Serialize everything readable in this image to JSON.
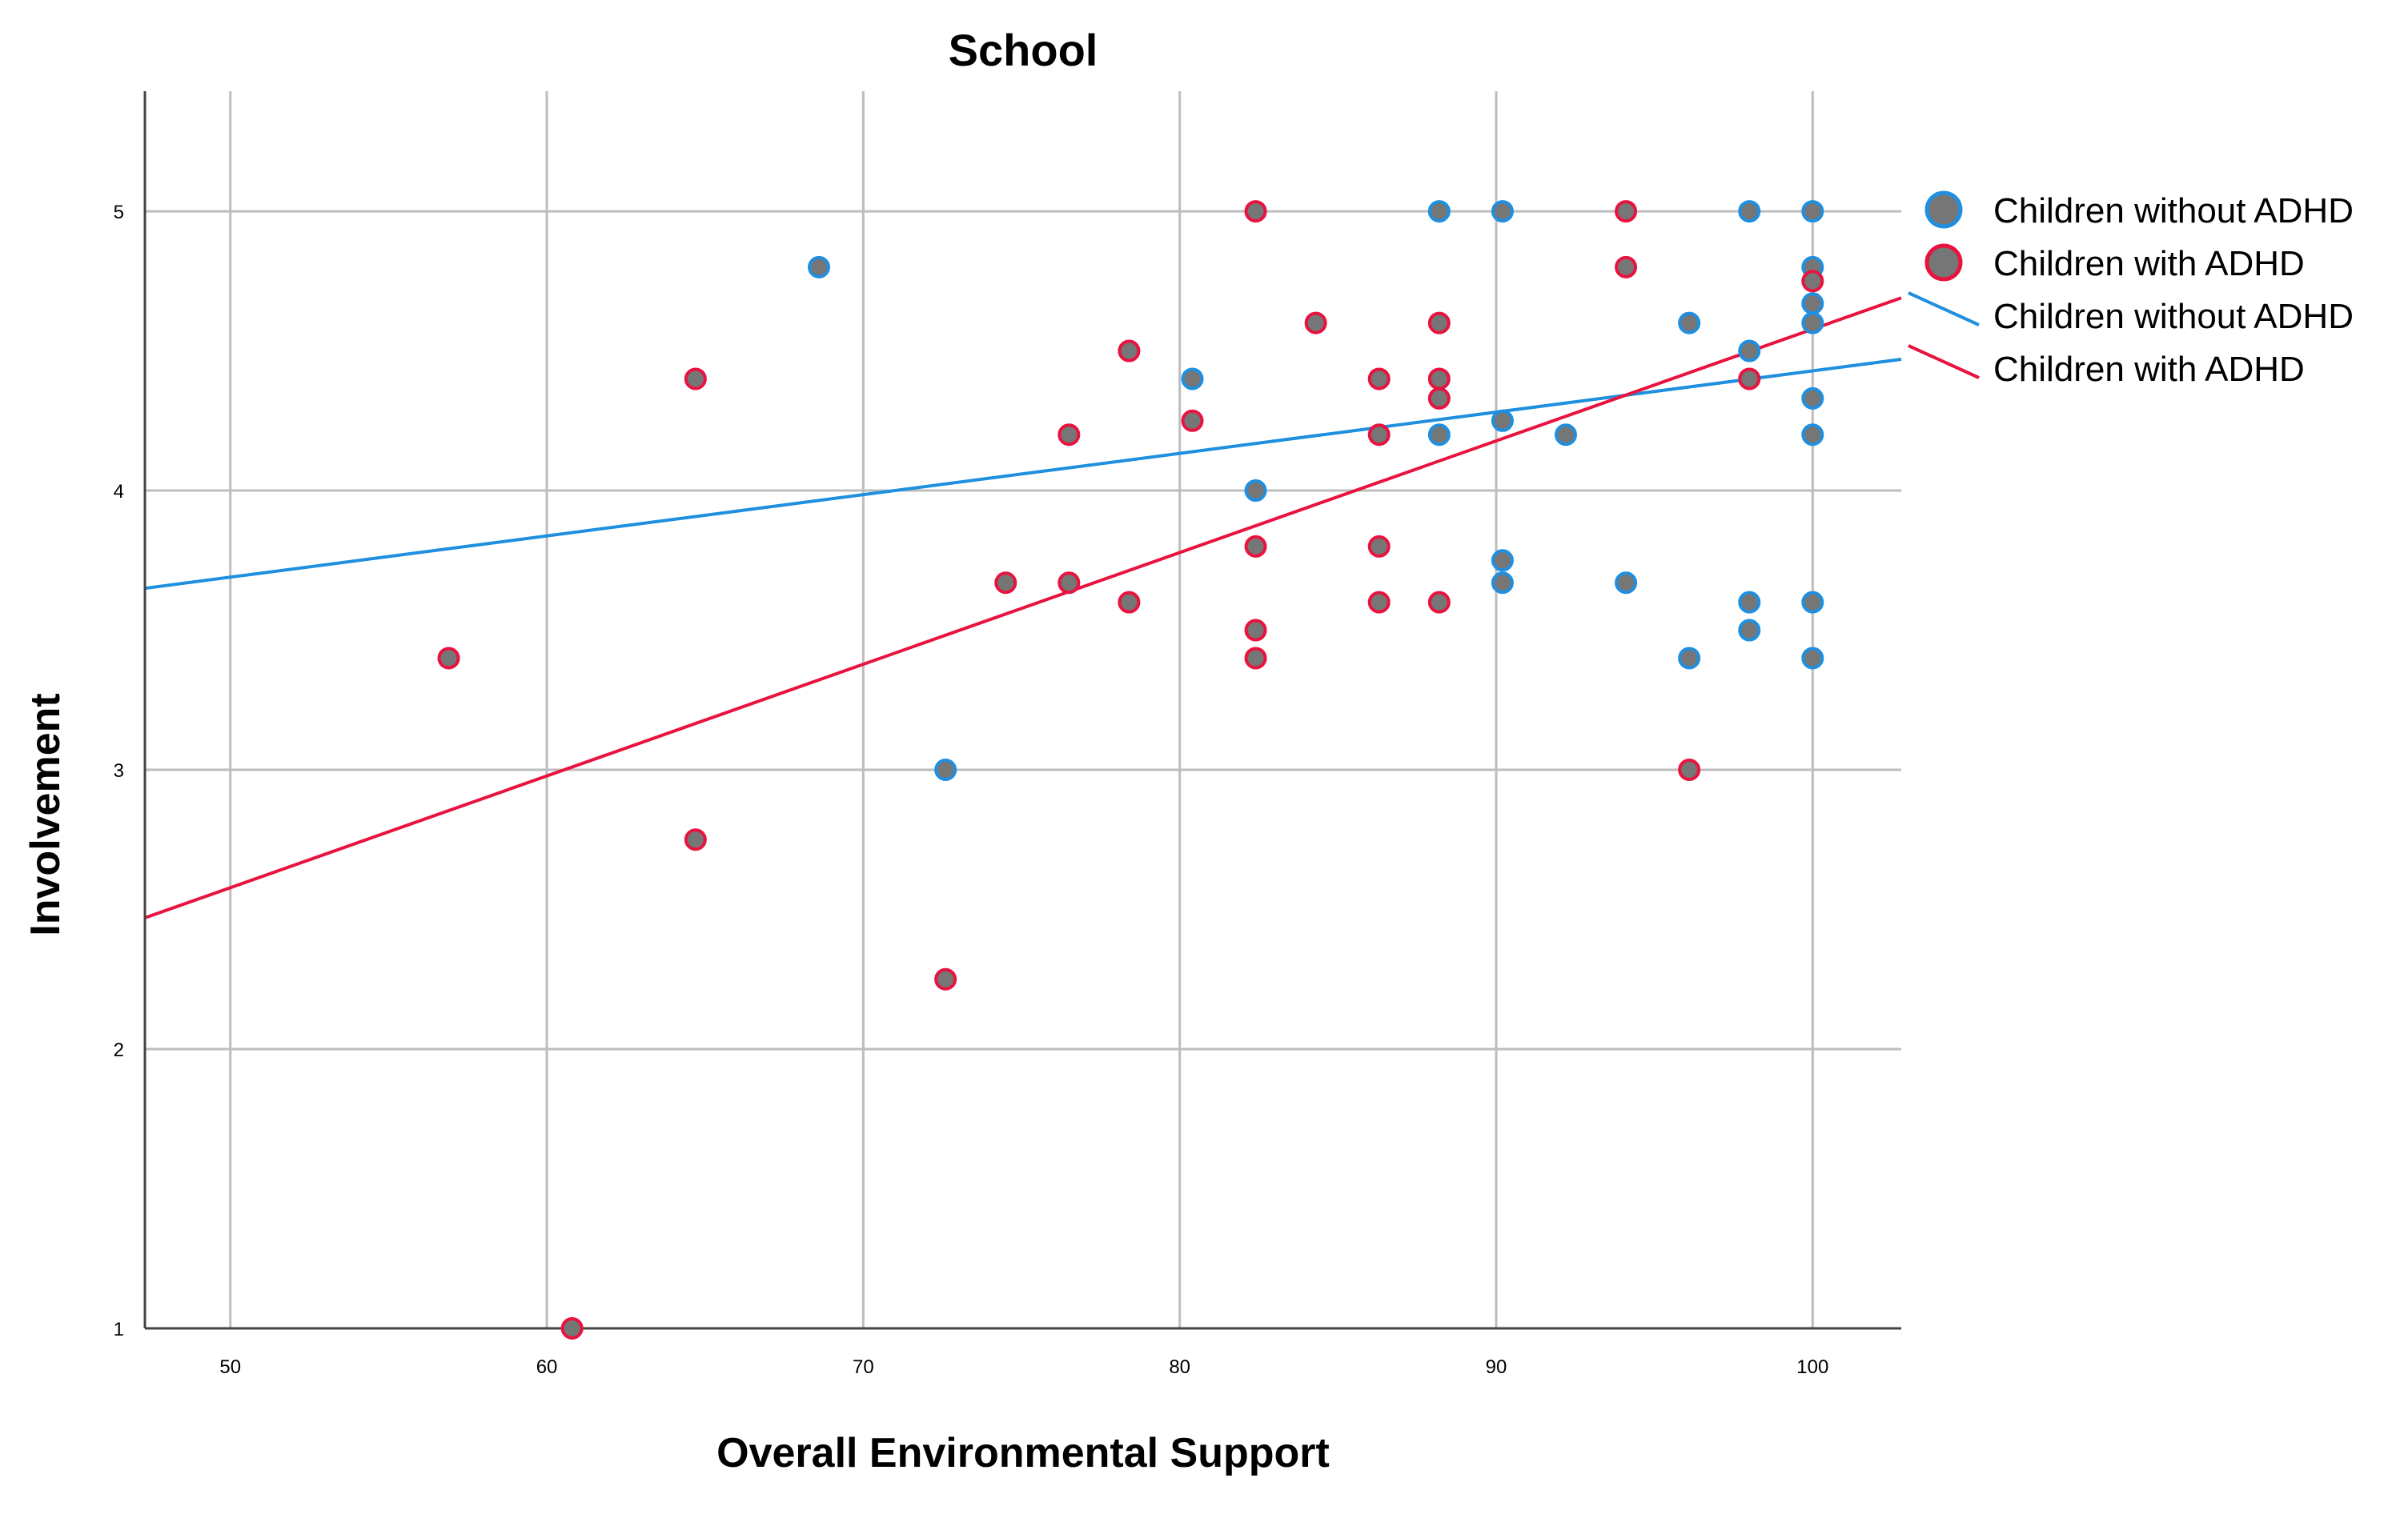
{
  "chart_data": {
    "type": "scatter",
    "title": "School",
    "xlabel": "Overall Environmental Support",
    "ylabel": "Involvement",
    "xlim": [
      47.3,
      102.8
    ],
    "ylim": [
      1,
      5.43
    ],
    "xticks": [
      "50",
      "60",
      "70",
      "80",
      "90",
      "100"
    ],
    "xtick_values": [
      50,
      60,
      70,
      80,
      90,
      100
    ],
    "yticks": [
      "1",
      "2",
      "3",
      "4",
      "5"
    ],
    "ytick_values": [
      1,
      2,
      3,
      4,
      5
    ],
    "grid": true,
    "legend_position": "right",
    "legend": [
      {
        "label": "Children without ADHD",
        "kind": "marker",
        "series": "without"
      },
      {
        "label": "Children with ADHD",
        "kind": "marker",
        "series": "with"
      },
      {
        "label": "Children without ADHD",
        "kind": "line",
        "series": "without"
      },
      {
        "label": "Children with ADHD",
        "kind": "line",
        "series": "with"
      }
    ],
    "colors": {
      "without": "#1f8fe0",
      "with": "#e8133f",
      "marker_fill": "#767676",
      "grid": "#bdbdbd",
      "axis": "#444444"
    },
    "series": [
      {
        "name": "Children without ADHD",
        "key": "without",
        "points": [
          [
            68.6,
            4.8
          ],
          [
            72.6,
            3.0
          ],
          [
            80.4,
            4.4
          ],
          [
            82.4,
            4.0
          ],
          [
            88.2,
            5.0
          ],
          [
            88.2,
            4.2
          ],
          [
            90.2,
            5.0
          ],
          [
            90.2,
            4.25
          ],
          [
            90.2,
            3.75
          ],
          [
            90.2,
            3.67
          ],
          [
            92.2,
            4.2
          ],
          [
            94.1,
            3.67
          ],
          [
            96.1,
            4.6
          ],
          [
            96.1,
            3.4
          ],
          [
            98.0,
            5.0
          ],
          [
            98.0,
            4.5
          ],
          [
            98.0,
            3.6
          ],
          [
            98.0,
            3.5
          ],
          [
            100,
            5.0
          ],
          [
            100,
            4.8
          ],
          [
            100,
            4.67
          ],
          [
            100,
            4.6
          ],
          [
            100,
            4.33
          ],
          [
            100,
            4.2
          ],
          [
            100,
            3.6
          ],
          [
            100,
            3.4
          ]
        ],
        "fit_line": [
          [
            47.3,
            3.65
          ],
          [
            102.8,
            4.47
          ]
        ]
      },
      {
        "name": "Children with ADHD",
        "key": "with",
        "points": [
          [
            56.9,
            3.4
          ],
          [
            60.8,
            1.0
          ],
          [
            64.7,
            4.4
          ],
          [
            64.7,
            2.75
          ],
          [
            72.6,
            2.25
          ],
          [
            74.5,
            3.67
          ],
          [
            76.5,
            4.2
          ],
          [
            76.5,
            3.67
          ],
          [
            78.4,
            4.5
          ],
          [
            78.4,
            3.6
          ],
          [
            80.4,
            4.25
          ],
          [
            82.4,
            5.0
          ],
          [
            82.4,
            3.8
          ],
          [
            82.4,
            3.5
          ],
          [
            82.4,
            3.4
          ],
          [
            84.3,
            4.6
          ],
          [
            86.3,
            4.4
          ],
          [
            86.3,
            4.2
          ],
          [
            86.3,
            3.8
          ],
          [
            86.3,
            3.6
          ],
          [
            88.2,
            4.6
          ],
          [
            88.2,
            4.4
          ],
          [
            88.2,
            4.33
          ],
          [
            88.2,
            3.6
          ],
          [
            94.1,
            5.0
          ],
          [
            94.1,
            4.8
          ],
          [
            96.1,
            3.0
          ],
          [
            98.0,
            4.4
          ],
          [
            100,
            4.75
          ]
        ],
        "fit_line": [
          [
            47.3,
            2.47
          ],
          [
            102.8,
            4.69
          ]
        ]
      }
    ]
  }
}
